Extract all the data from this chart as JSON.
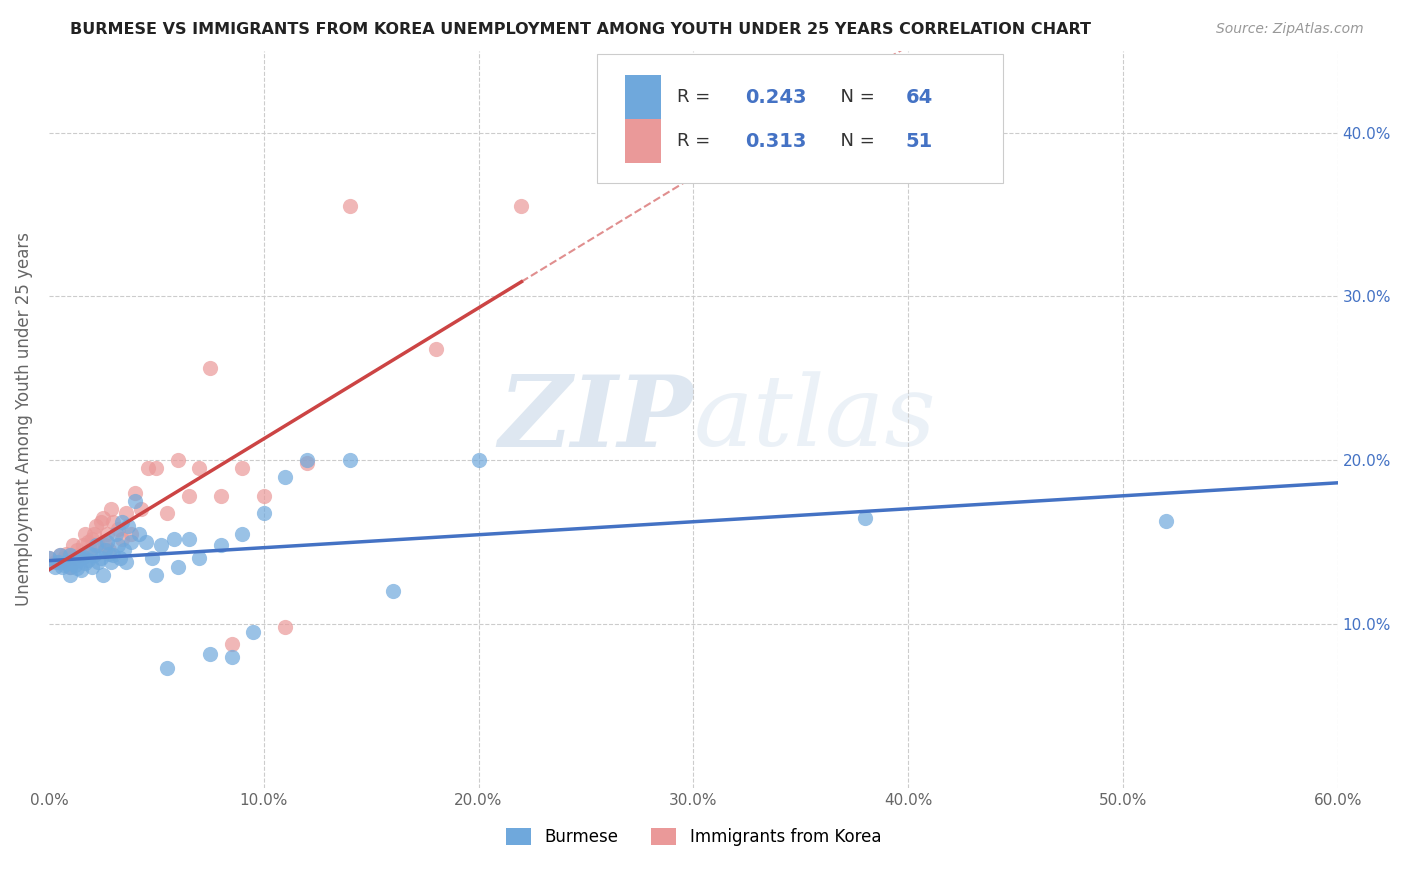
{
  "title": "BURMESE VS IMMIGRANTS FROM KOREA UNEMPLOYMENT AMONG YOUTH UNDER 25 YEARS CORRELATION CHART",
  "source": "Source: ZipAtlas.com",
  "ylabel": "Unemployment Among Youth under 25 years",
  "xlim": [
    0.0,
    0.6
  ],
  "ylim": [
    0.0,
    0.45
  ],
  "xticks": [
    0.0,
    0.1,
    0.2,
    0.3,
    0.4,
    0.5,
    0.6
  ],
  "yticks": [
    0.1,
    0.2,
    0.3,
    0.4
  ],
  "ytick_labels": [
    "10.0%",
    "20.0%",
    "30.0%",
    "40.0%"
  ],
  "xtick_labels": [
    "0.0%",
    "10.0%",
    "20.0%",
    "30.0%",
    "40.0%",
    "50.0%",
    "60.0%"
  ],
  "burmese_color": "#6fa8dc",
  "korea_color": "#ea9999",
  "burmese_line_color": "#4472c4",
  "korea_line_color": "#cc4444",
  "burmese_R": 0.243,
  "burmese_N": 64,
  "korea_R": 0.313,
  "korea_N": 51,
  "watermark_zip": "ZIP",
  "watermark_atlas": "atlas",
  "background_color": "#ffffff",
  "burmese_x": [
    0.0,
    0.003,
    0.004,
    0.005,
    0.006,
    0.007,
    0.008,
    0.009,
    0.01,
    0.01,
    0.01,
    0.011,
    0.012,
    0.013,
    0.014,
    0.015,
    0.015,
    0.016,
    0.017,
    0.018,
    0.019,
    0.02,
    0.021,
    0.022,
    0.023,
    0.024,
    0.025,
    0.026,
    0.027,
    0.028,
    0.029,
    0.03,
    0.031,
    0.032,
    0.033,
    0.034,
    0.035,
    0.036,
    0.037,
    0.038,
    0.04,
    0.042,
    0.045,
    0.048,
    0.05,
    0.052,
    0.055,
    0.058,
    0.06,
    0.065,
    0.07,
    0.075,
    0.08,
    0.085,
    0.09,
    0.095,
    0.1,
    0.11,
    0.12,
    0.14,
    0.16,
    0.2,
    0.38,
    0.52
  ],
  "burmese_y": [
    0.14,
    0.135,
    0.138,
    0.142,
    0.135,
    0.136,
    0.137,
    0.138,
    0.13,
    0.135,
    0.142,
    0.138,
    0.136,
    0.134,
    0.14,
    0.133,
    0.14,
    0.141,
    0.137,
    0.139,
    0.143,
    0.135,
    0.142,
    0.148,
    0.138,
    0.14,
    0.13,
    0.145,
    0.15,
    0.143,
    0.138,
    0.142,
    0.155,
    0.148,
    0.14,
    0.162,
    0.145,
    0.138,
    0.16,
    0.15,
    0.175,
    0.155,
    0.15,
    0.14,
    0.13,
    0.148,
    0.073,
    0.152,
    0.135,
    0.152,
    0.14,
    0.082,
    0.148,
    0.08,
    0.155,
    0.095,
    0.168,
    0.19,
    0.2,
    0.2,
    0.12,
    0.2,
    0.165,
    0.163
  ],
  "korea_x": [
    0.0,
    0.003,
    0.005,
    0.006,
    0.007,
    0.008,
    0.009,
    0.01,
    0.01,
    0.011,
    0.012,
    0.013,
    0.014,
    0.015,
    0.016,
    0.017,
    0.018,
    0.019,
    0.02,
    0.021,
    0.022,
    0.023,
    0.024,
    0.025,
    0.026,
    0.027,
    0.028,
    0.029,
    0.03,
    0.032,
    0.034,
    0.036,
    0.038,
    0.04,
    0.043,
    0.046,
    0.05,
    0.055,
    0.06,
    0.065,
    0.07,
    0.075,
    0.08,
    0.085,
    0.09,
    0.1,
    0.11,
    0.12,
    0.14,
    0.18,
    0.22
  ],
  "korea_y": [
    0.14,
    0.138,
    0.142,
    0.138,
    0.14,
    0.143,
    0.14,
    0.135,
    0.142,
    0.148,
    0.14,
    0.145,
    0.142,
    0.142,
    0.148,
    0.155,
    0.15,
    0.145,
    0.152,
    0.155,
    0.16,
    0.148,
    0.162,
    0.165,
    0.148,
    0.155,
    0.145,
    0.17,
    0.162,
    0.158,
    0.152,
    0.168,
    0.155,
    0.18,
    0.17,
    0.195,
    0.195,
    0.168,
    0.2,
    0.178,
    0.195,
    0.256,
    0.178,
    0.088,
    0.195,
    0.178,
    0.098,
    0.198,
    0.355,
    0.268,
    0.355
  ]
}
